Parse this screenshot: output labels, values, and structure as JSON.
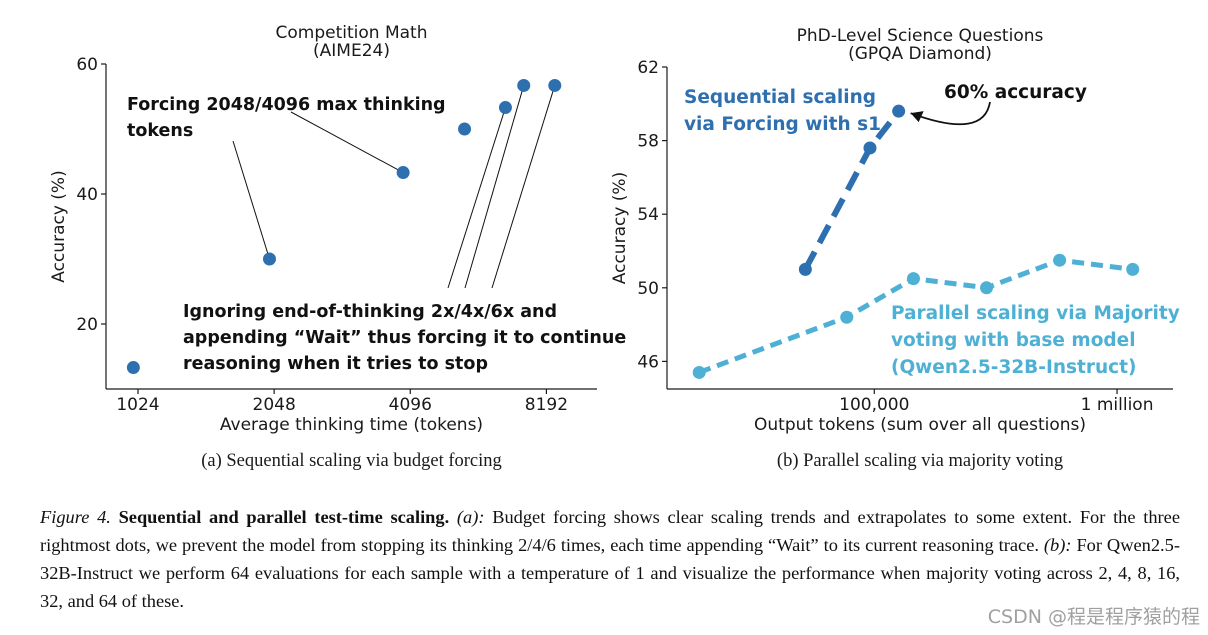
{
  "chart_data": [
    {
      "type": "scatter",
      "title": "Competition Math",
      "subtitle": "(AIME24)",
      "xlabel": "Average thinking time (tokens)",
      "ylabel": "Accuracy (%)",
      "xscale": "log2",
      "xlim": [
        870,
        10600
      ],
      "ylim": [
        10,
        60
      ],
      "xticks": [
        1024,
        2048,
        4096,
        8192
      ],
      "xtick_labels": [
        "1024",
        "2048",
        "4096",
        "8192"
      ],
      "yticks": [
        20,
        40,
        60
      ],
      "ytick_labels": [
        "20",
        "40",
        "60"
      ],
      "color": "#2e6fb0",
      "points": [
        {
          "x": 1000,
          "y": 13.3
        },
        {
          "x": 2000,
          "y": 30
        },
        {
          "x": 3950,
          "y": 43.3
        },
        {
          "x": 5400,
          "y": 50
        },
        {
          "x": 6650,
          "y": 53.3
        },
        {
          "x": 7300,
          "y": 56.7
        },
        {
          "x": 8550,
          "y": 56.7
        }
      ],
      "annotations": [
        {
          "lines": [
            "Forcing 2048/4096 max thinking",
            "tokens"
          ],
          "points": [
            1,
            2
          ]
        },
        {
          "lines": [
            "Ignoring end-of-thinking 2x/4x/6x and",
            "appending “Wait” thus forcing it to continue",
            "reasoning when it tries to stop"
          ],
          "points": [
            4,
            5,
            6
          ]
        }
      ],
      "subcaption": "(a) Sequential scaling via budget forcing"
    },
    {
      "type": "line",
      "title": "PhD-Level Science Questions",
      "subtitle": "(GPQA Diamond)",
      "xlabel": "Output tokens (sum over all questions)",
      "ylabel": "Accuracy (%)",
      "xscale": "log10",
      "xlim": [
        14000,
        1700000
      ],
      "ylim": [
        44.5,
        62
      ],
      "xticks": [
        100000,
        1000000
      ],
      "xtick_labels": [
        "100,000",
        "1 million"
      ],
      "yticks": [
        46,
        50,
        54,
        58,
        62
      ],
      "ytick_labels": [
        "46",
        "50",
        "54",
        "58",
        "62"
      ],
      "series": [
        {
          "name": "Sequential scaling via Forcing with s1",
          "label_lines": [
            "Sequential scaling",
            "via Forcing with s1"
          ],
          "color": "#2e6fb0",
          "x": [
            52000,
            96000,
            126000
          ],
          "y": [
            51.0,
            57.6,
            59.6
          ]
        },
        {
          "name": "Parallel scaling via Majority voting with base model (Qwen2.5-32B-Instruct)",
          "label_lines": [
            "Parallel scaling via Majority",
            "voting with base model",
            "(Qwen2.5-32B-Instruct)"
          ],
          "color": "#4eb0d4",
          "x": [
            19000,
            77000,
            145000,
            290000,
            580000,
            1160000
          ],
          "y": [
            45.4,
            48.4,
            50.5,
            50.0,
            51.5,
            51.0
          ]
        }
      ],
      "callout": {
        "text": "60% accuracy",
        "target_series": 0,
        "target_index": 2
      },
      "subcaption": "(b) Parallel scaling via majority voting"
    }
  ],
  "caption": {
    "figure_label": "Figure 4.",
    "bold_title": "Sequential and parallel test-time scaling.",
    "part_a_label": "(a):",
    "part_a_text": "Budget forcing shows clear scaling trends and extrapolates to some extent. For the three rightmost dots, we prevent the model from stopping its thinking 2/4/6 times, each time appending “Wait” to its current reasoning trace.",
    "part_b_label": "(b):",
    "part_b_text": "For Qwen2.5-32B-Instruct we perform 64 evaluations for each sample with a temperature of 1 and visualize the performance when majority voting across 2, 4, 8, 16, 32, and 64 of these."
  },
  "watermark": "CSDN @程是程序猿的程"
}
